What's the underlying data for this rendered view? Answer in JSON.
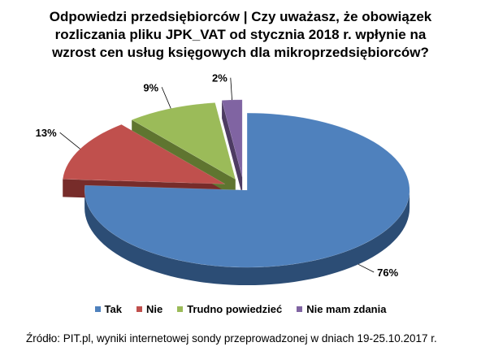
{
  "chart_data": {
    "type": "pie",
    "title_lines": [
      "Odpowiedzi przedsiębiorców | Czy uważasz, że obowiązek",
      "rozliczania pliku JPK_VAT od stycznia 2018 r. wpłynie na",
      "wzrost cen usług księgowych dla mikroprzedsiębiorców?"
    ],
    "categories": [
      "Tak",
      "Nie",
      "Trudno powiedzieć",
      "Nie mam zdania"
    ],
    "values": [
      76,
      13,
      9,
      2
    ],
    "data_labels": [
      "76%",
      "13%",
      "9%",
      "2%"
    ],
    "colors": [
      "#4F81BD",
      "#C0504D",
      "#9BBB59",
      "#8064A2"
    ],
    "dark_colors": [
      "#2C4D75",
      "#772C2A",
      "#5F7530",
      "#4D3B62"
    ],
    "style": "3d-exploded",
    "legend_position": "bottom"
  },
  "source_text": "Źródło: PIT.pl, wyniki internetowej sondy przeprowadzonej w dniach 19-25.10.2017  r."
}
